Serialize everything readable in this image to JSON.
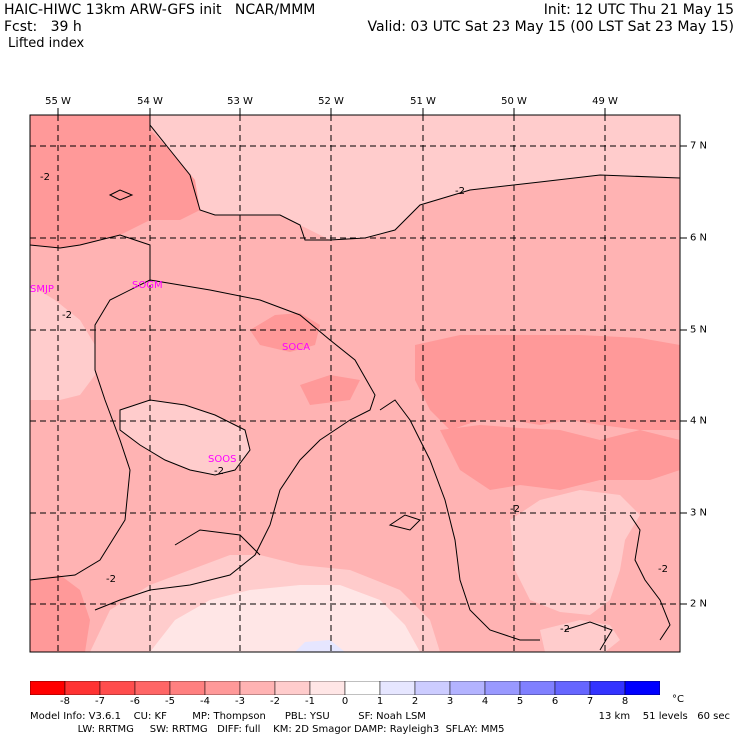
{
  "header": {
    "line1": "HAIC-HIWC 13km ARW-GFS init   NCAR/MMM",
    "line2": "Fcst:   39 h",
    "line3": "Lifted index",
    "init": "Init: 12 UTC Thu 21 May 15",
    "valid": "Valid: 03 UTC Sat 23 May 15 (00 LST Sat 23 May 15)"
  },
  "longitudes": [
    "55 W",
    "54 W",
    "53 W",
    "52 W",
    "51 W",
    "50 W",
    "49 W"
  ],
  "latitudes": [
    "7 N",
    "6 N",
    "5 N",
    "4 N",
    "3 N",
    "2 N"
  ],
  "stations": [
    "SMJP",
    "SOGM",
    "SOCA",
    "SOOS"
  ],
  "contour_labels": [
    "-2",
    "-2",
    "-2",
    "-2",
    "-2",
    "-2",
    "-2",
    "-2",
    "-2"
  ],
  "colorbar": {
    "ticks": [
      "-8",
      "-7",
      "-6",
      "-5",
      "-4",
      "-3",
      "-2",
      "-1",
      "0",
      "1",
      "2",
      "3",
      "4",
      "5",
      "6",
      "7",
      "8"
    ],
    "unit": "°C",
    "colors": [
      "#ff0000",
      "#ff3333",
      "#ff4d4d",
      "#ff6666",
      "#ff8080",
      "#ff9999",
      "#ffb3b3",
      "#ffcccc",
      "#ffe6e6",
      "#ffffff",
      "#e6e6ff",
      "#ccccff",
      "#b3b3ff",
      "#9999ff",
      "#8080ff",
      "#6666ff",
      "#3333ff",
      "#0000ff"
    ]
  },
  "map_colors": {
    "dark": "#ff9999",
    "mid": "#ffb3b3",
    "light": "#ffcccc",
    "pale": "#ffe6e6",
    "blue": "#e6e6ff",
    "station": "#ff00ff"
  },
  "footer": {
    "line1": "Model Info: V3.6.1    CU: KF        MP: Thompson      PBL: YSU         SF: Noah LSM",
    "line1_right": "13 km    51 levels   60 sec",
    "line2": "               LW: RRTMG     SW: RRTMG   DIFF: full    KM: 2D Smagor DAMP: Rayleigh3  SFLAY: MM5",
    "line2_right": ""
  }
}
